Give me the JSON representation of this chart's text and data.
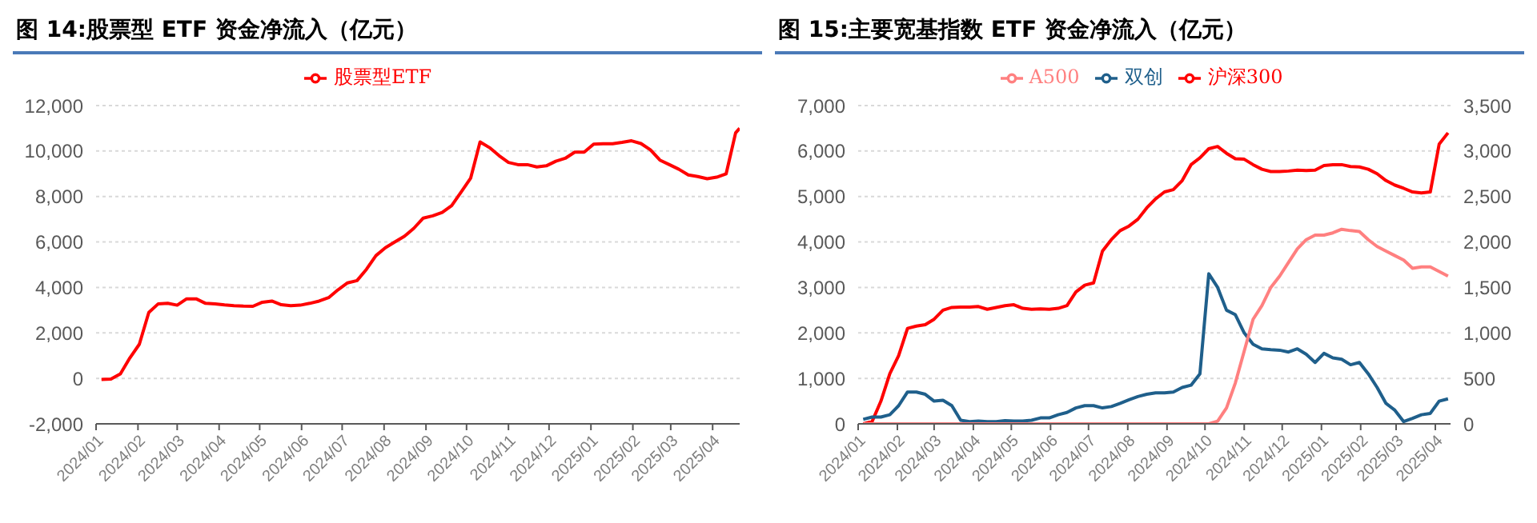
{
  "chart_data": [
    {
      "type": "line",
      "title": "图 14:股票型 ETF 资金净流入（亿元）",
      "x": [
        "2024-01-05",
        "2024-01-12",
        "2024-01-19",
        "2024-01-26",
        "2024-02-02",
        "2024-02-09",
        "2024-02-16",
        "2024-02-23",
        "2024-03-01",
        "2024-03-08",
        "2024-03-15",
        "2024-03-22",
        "2024-03-29",
        "2024-04-05",
        "2024-04-12",
        "2024-04-19",
        "2024-04-26",
        "2024-05-03",
        "2024-05-10",
        "2024-05-17",
        "2024-05-24",
        "2024-05-31",
        "2024-06-07",
        "2024-06-14",
        "2024-06-21",
        "2024-06-28",
        "2024-07-05",
        "2024-07-12",
        "2024-07-19",
        "2024-07-26",
        "2024-08-02",
        "2024-08-09",
        "2024-08-16",
        "2024-08-23",
        "2024-08-30",
        "2024-09-06",
        "2024-09-13",
        "2024-09-20",
        "2024-09-27",
        "2024-10-04",
        "2024-10-11",
        "2024-10-18",
        "2024-10-25",
        "2024-11-01",
        "2024-11-08",
        "2024-11-15",
        "2024-11-22",
        "2024-11-29",
        "2024-12-06",
        "2024-12-13",
        "2024-12-20",
        "2024-12-27",
        "2025-01-03",
        "2025-01-10",
        "2025-01-17",
        "2025-01-24",
        "2025-01-31",
        "2025-02-07",
        "2025-02-14",
        "2025-02-21",
        "2025-02-28",
        "2025-03-07",
        "2025-03-14",
        "2025-03-21",
        "2025-03-28",
        "2025-04-04",
        "2025-04-11",
        "2025-04-18",
        "2025-04-21"
      ],
      "series": [
        {
          "name": "股票型ETF",
          "color": "#ff0000",
          "values": [
            -50,
            -30,
            200,
            900,
            1500,
            2900,
            3280,
            3300,
            3220,
            3500,
            3500,
            3300,
            3280,
            3230,
            3200,
            3180,
            3170,
            3350,
            3400,
            3240,
            3200,
            3220,
            3300,
            3400,
            3550,
            3900,
            4200,
            4300,
            4800,
            5400,
            5750,
            6000,
            6250,
            6600,
            7050,
            7150,
            7300,
            7600,
            8200,
            8800,
            10400,
            10150,
            9800,
            9500,
            9400,
            9400,
            9300,
            9350,
            9550,
            9680,
            9950,
            9950,
            10300,
            10320,
            10320,
            10380,
            10450,
            10330,
            10050,
            9600,
            9400,
            9200,
            8950,
            8880,
            8780,
            8850,
            9000,
            10800,
            11000
          ]
        }
      ],
      "xlim": [
        "2024-01-01",
        "2025-04-21"
      ],
      "xticks": [
        {
          "value": "2024-01",
          "label": "2024/01"
        },
        {
          "value": "2024-02",
          "label": "2024/02"
        },
        {
          "value": "2024-03",
          "label": "2024/03"
        },
        {
          "value": "2024-04",
          "label": "2024/04"
        },
        {
          "value": "2024-05",
          "label": "2024/05"
        },
        {
          "value": "2024-06",
          "label": "2024/06"
        },
        {
          "value": "2024-07",
          "label": "2024/07"
        },
        {
          "value": "2024-08",
          "label": "2024/08"
        },
        {
          "value": "2024-09",
          "label": "2024/09"
        },
        {
          "value": "2024-10",
          "label": "2024/10"
        },
        {
          "value": "2024-11",
          "label": "2024/11"
        },
        {
          "value": "2024-12",
          "label": "2024/12"
        },
        {
          "value": "2025-01",
          "label": "2025/01"
        },
        {
          "value": "2025-02",
          "label": "2025/02"
        },
        {
          "value": "2025-03",
          "label": "2025/03"
        },
        {
          "value": "2025-04",
          "label": "2025/04"
        }
      ],
      "ylim": [
        -2000,
        12000
      ],
      "yticks": [
        {
          "value": -2000,
          "label": "-2,000"
        },
        {
          "value": 0,
          "label": "0"
        },
        {
          "value": 2000,
          "label": "2,000"
        },
        {
          "value": 4000,
          "label": "4,000"
        },
        {
          "value": 6000,
          "label": "6,000"
        },
        {
          "value": 8000,
          "label": "8,000"
        },
        {
          "value": 10000,
          "label": "10,000"
        },
        {
          "value": 12000,
          "label": "12,000"
        }
      ],
      "grid": "y",
      "legend": "top",
      "marker": "none",
      "line_style": "solid"
    },
    {
      "type": "line",
      "title": "图 15:主要宽基指数 ETF 资金净流入（亿元）",
      "x": [
        "2024-01-05",
        "2024-01-12",
        "2024-01-19",
        "2024-01-26",
        "2024-02-02",
        "2024-02-09",
        "2024-02-16",
        "2024-02-23",
        "2024-03-01",
        "2024-03-08",
        "2024-03-15",
        "2024-03-22",
        "2024-03-29",
        "2024-04-05",
        "2024-04-12",
        "2024-04-19",
        "2024-04-26",
        "2024-05-03",
        "2024-05-10",
        "2024-05-17",
        "2024-05-24",
        "2024-05-31",
        "2024-06-07",
        "2024-06-14",
        "2024-06-21",
        "2024-06-28",
        "2024-07-05",
        "2024-07-12",
        "2024-07-19",
        "2024-07-26",
        "2024-08-02",
        "2024-08-09",
        "2024-08-16",
        "2024-08-23",
        "2024-08-30",
        "2024-09-06",
        "2024-09-13",
        "2024-09-20",
        "2024-09-27",
        "2024-10-04",
        "2024-10-11",
        "2024-10-18",
        "2024-10-25",
        "2024-11-01",
        "2024-11-08",
        "2024-11-15",
        "2024-11-22",
        "2024-11-29",
        "2024-12-06",
        "2024-12-13",
        "2024-12-20",
        "2024-12-27",
        "2025-01-03",
        "2025-01-10",
        "2025-01-17",
        "2025-01-24",
        "2025-01-31",
        "2025-02-07",
        "2025-02-14",
        "2025-02-21",
        "2025-02-28",
        "2025-03-07",
        "2025-03-14",
        "2025-03-21",
        "2025-03-28",
        "2025-04-04",
        "2025-04-11"
      ],
      "series": [
        {
          "name": "沪深300",
          "color": "#ff0000",
          "values": [
            0,
            50,
            500,
            1100,
            1500,
            2100,
            2150,
            2180,
            2300,
            2500,
            2560,
            2570,
            2570,
            2580,
            2520,
            2560,
            2600,
            2620,
            2540,
            2520,
            2530,
            2520,
            2540,
            2600,
            2900,
            3050,
            3100,
            3800,
            4050,
            4250,
            4350,
            4500,
            4750,
            4950,
            5100,
            5150,
            5350,
            5700,
            5850,
            6050,
            6100,
            5950,
            5830,
            5820,
            5700,
            5600,
            5550,
            5550,
            5560,
            5580,
            5570,
            5580,
            5680,
            5700,
            5700,
            5660,
            5650,
            5600,
            5500,
            5350,
            5250,
            5180,
            5100,
            5080,
            5100,
            6150,
            6400
          ]
        },
        {
          "name": "双创",
          "color": "#1f5f8b",
          "values": [
            100,
            150,
            150,
            200,
            400,
            700,
            700,
            650,
            500,
            520,
            400,
            80,
            50,
            60,
            50,
            50,
            70,
            60,
            60,
            80,
            130,
            130,
            200,
            250,
            350,
            400,
            400,
            350,
            380,
            450,
            530,
            600,
            650,
            680,
            680,
            700,
            800,
            850,
            1100,
            3300,
            3000,
            2500,
            2400,
            2000,
            1750,
            1650,
            1630,
            1620,
            1580,
            1650,
            1530,
            1350,
            1550,
            1450,
            1420,
            1300,
            1350,
            1100,
            800,
            450,
            300,
            50,
            120,
            200,
            230,
            500,
            550
          ]
        },
        {
          "name": "A500",
          "color": "#ff8080",
          "axis": "y2",
          "values": [
            0,
            0,
            0,
            0,
            0,
            0,
            0,
            0,
            0,
            0,
            0,
            0,
            0,
            0,
            0,
            0,
            0,
            0,
            0,
            0,
            0,
            0,
            0,
            0,
            0,
            0,
            0,
            0,
            0,
            0,
            0,
            0,
            0,
            0,
            0,
            0,
            0,
            0,
            0,
            0,
            30,
            175,
            450,
            800,
            1150,
            1300,
            1500,
            1625,
            1775,
            1925,
            2025,
            2075,
            2075,
            2100,
            2140,
            2125,
            2115,
            2025,
            1950,
            1900,
            1850,
            1800,
            1710,
            1725,
            1725,
            1675,
            1625
          ]
        }
      ],
      "xlim": [
        "2024-01-01",
        "2025-04-13"
      ],
      "xticks": [
        {
          "value": "2024-01",
          "label": "2024/01"
        },
        {
          "value": "2024-02",
          "label": "2024/02"
        },
        {
          "value": "2024-03",
          "label": "2024/03"
        },
        {
          "value": "2024-04",
          "label": "2024/04"
        },
        {
          "value": "2024-05",
          "label": "2024/05"
        },
        {
          "value": "2024-06",
          "label": "2024/06"
        },
        {
          "value": "2024-07",
          "label": "2024/07"
        },
        {
          "value": "2024-08",
          "label": "2024/08"
        },
        {
          "value": "2024-09",
          "label": "2024/09"
        },
        {
          "value": "2024-10",
          "label": "2024/10"
        },
        {
          "value": "2024-11",
          "label": "2024/11"
        },
        {
          "value": "2024-12",
          "label": "2024/12"
        },
        {
          "value": "2025-01",
          "label": "2025/01"
        },
        {
          "value": "2025-02",
          "label": "2025/02"
        },
        {
          "value": "2025-03",
          "label": "2025/03"
        },
        {
          "value": "2025-04",
          "label": "2025/04"
        }
      ],
      "ylim": [
        0,
        7000
      ],
      "yticks": [
        0,
        {
          "value": 1000,
          "label": "1,000"
        },
        {
          "value": 2000,
          "label": "2,000"
        },
        {
          "value": 3000,
          "label": "3,000"
        },
        {
          "value": 4000,
          "label": "4,000"
        },
        {
          "value": 5000,
          "label": "5,000"
        },
        {
          "value": 6000,
          "label": "6,000"
        },
        {
          "value": 7000,
          "label": "7,000"
        }
      ],
      "y2lim": [
        0,
        3500
      ],
      "y2ticks": [
        0,
        500,
        {
          "value": 1000,
          "label": "1,000"
        },
        {
          "value": 1500,
          "label": "1,500"
        },
        {
          "value": 2000,
          "label": "2,000"
        },
        {
          "value": 2500,
          "label": "2,500"
        },
        {
          "value": 3000,
          "label": "3,000"
        },
        {
          "value": 3500,
          "label": "3,500"
        }
      ],
      "grid": "y",
      "legend": "top",
      "marker": "none",
      "line_style": "solid"
    }
  ]
}
